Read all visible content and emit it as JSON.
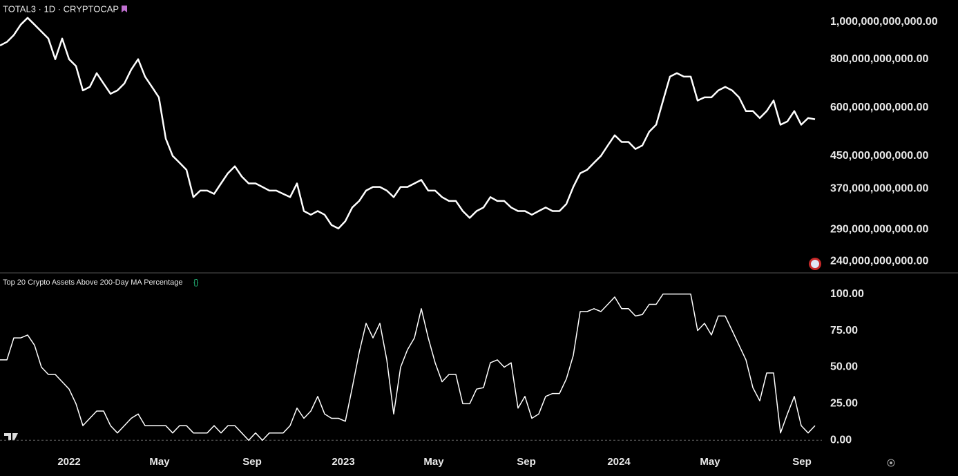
{
  "chart_data": [
    {
      "type": "line",
      "title": "TOTAL3 · 1D · CRYPTOCAP",
      "log_scale": true,
      "xlim": [
        0,
        119
      ],
      "ylim": [
        225000000000.0,
        1140000000000.0
      ],
      "yticks": [
        {
          "value": 1000000000000.0,
          "label": "1,000,000,000,000.00"
        },
        {
          "value": 800000000000.0,
          "label": "800,000,000,000.00"
        },
        {
          "value": 600000000000.0,
          "label": "600,000,000,000.00"
        },
        {
          "value": 450000000000.0,
          "label": "450,000,000,000.00"
        },
        {
          "value": 370000000000.0,
          "label": "370,000,000,000.00"
        },
        {
          "value": 290000000000.0,
          "label": "290,000,000,000.00"
        },
        {
          "value": 240000000000.0,
          "label": "240,000,000,000.00"
        }
      ],
      "color": "#ffffff",
      "values": [
        869000000000.0,
        888000000000.0,
        925000000000.0,
        984000000000.0,
        1025000000000.0,
        984000000000.0,
        944000000000.0,
        906000000000.0,
        801000000000.0,
        906000000000.0,
        801000000000.0,
        769000000000.0,
        665000000000.0,
        679000000000.0,
        737000000000.0,
        693000000000.0,
        652000000000.0,
        665000000000.0,
        693000000000.0,
        753000000000.0,
        801000000000.0,
        722000000000.0,
        679000000000.0,
        638000000000.0,
        499000000000.0,
        450000000000.0,
        432000000000.0,
        414000000000.0,
        352000000000.0,
        366000000000.0,
        366000000000.0,
        359000000000.0,
        382000000000.0,
        406000000000.0,
        423000000000.0,
        398000000000.0,
        382000000000.0,
        382000000000.0,
        374000000000.0,
        366000000000.0,
        366000000000.0,
        359000000000.0,
        352000000000.0,
        382000000000.0,
        324000000000.0,
        317000000000.0,
        324000000000.0,
        317000000000.0,
        298000000000.0,
        292000000000.0,
        305000000000.0,
        331000000000.0,
        344000000000.0,
        366000000000.0,
        374000000000.0,
        374000000000.0,
        366000000000.0,
        352000000000.0,
        374000000000.0,
        374000000000.0,
        382000000000.0,
        390000000000.0,
        366000000000.0,
        366000000000.0,
        352000000000.0,
        344000000000.0,
        344000000000.0,
        324000000000.0,
        311000000000.0,
        324000000000.0,
        331000000000.0,
        352000000000.0,
        344000000000.0,
        344000000000.0,
        331000000000.0,
        324000000000.0,
        324000000000.0,
        317000000000.0,
        324000000000.0,
        331000000000.0,
        324000000000.0,
        324000000000.0,
        338000000000.0,
        374000000000.0,
        406000000000.0,
        414000000000.0,
        432000000000.0,
        450000000000.0,
        479000000000.0,
        509000000000.0,
        489000000000.0,
        489000000000.0,
        469000000000.0,
        479000000000.0,
        520000000000.0,
        542000000000.0,
        626000000000.0,
        722000000000.0,
        737000000000.0,
        722000000000.0,
        722000000000.0,
        626000000000.0,
        638000000000.0,
        638000000000.0,
        665000000000.0,
        679000000000.0,
        665000000000.0,
        638000000000.0,
        588000000000.0,
        588000000000.0,
        564000000000.0,
        588000000000.0,
        626000000000.0,
        542000000000.0,
        553000000000.0,
        588000000000.0,
        542000000000.0,
        564000000000.0,
        560000000000.0
      ]
    },
    {
      "type": "line",
      "title": "Top 20 Crypto Assets Above 200-Day MA Percentage",
      "xlim": [
        0,
        119
      ],
      "ylim": [
        -6,
        114
      ],
      "xticks": [
        {
          "value": 10,
          "label": "2022"
        },
        {
          "value": 23.1,
          "label": "May"
        },
        {
          "value": 36.5,
          "label": "Sep"
        },
        {
          "value": 49.7,
          "label": "2023"
        },
        {
          "value": 62.8,
          "label": "May"
        },
        {
          "value": 76.2,
          "label": "Sep"
        },
        {
          "value": 89.6,
          "label": "2024"
        },
        {
          "value": 102.8,
          "label": "May"
        },
        {
          "value": 116.1,
          "label": "Sep"
        }
      ],
      "yticks": [
        {
          "value": 100,
          "label": "100.00"
        },
        {
          "value": 75,
          "label": "75.00"
        },
        {
          "value": 50,
          "label": "50.00"
        },
        {
          "value": 25,
          "label": "25.00"
        },
        {
          "value": 0,
          "label": "0.00"
        }
      ],
      "color": "#ffffff",
      "values": [
        55,
        55,
        70,
        70,
        72,
        65,
        50,
        45,
        45,
        40,
        35,
        25,
        10,
        15,
        20,
        20,
        10,
        5,
        10,
        15,
        18,
        10,
        10,
        10,
        10,
        5,
        10,
        10,
        5,
        5,
        5,
        10,
        5,
        10,
        10,
        5,
        0,
        5,
        0,
        5,
        5,
        5,
        10,
        22,
        15,
        20,
        30,
        18,
        15,
        15,
        13,
        36,
        60,
        80,
        70,
        80,
        55,
        18,
        50,
        62,
        70,
        90,
        70,
        53,
        40,
        45,
        45,
        25,
        25,
        35,
        36,
        53,
        55,
        50,
        53,
        22,
        30,
        15,
        18,
        30,
        32,
        32,
        42,
        58,
        88,
        88,
        90,
        88,
        93,
        98,
        90,
        90,
        85,
        86,
        93,
        93,
        100,
        100,
        100,
        100,
        100,
        75,
        80,
        72,
        85,
        85,
        75,
        65,
        55,
        36,
        27,
        46,
        46,
        5,
        18,
        30,
        10,
        5,
        10
      ]
    }
  ]
}
